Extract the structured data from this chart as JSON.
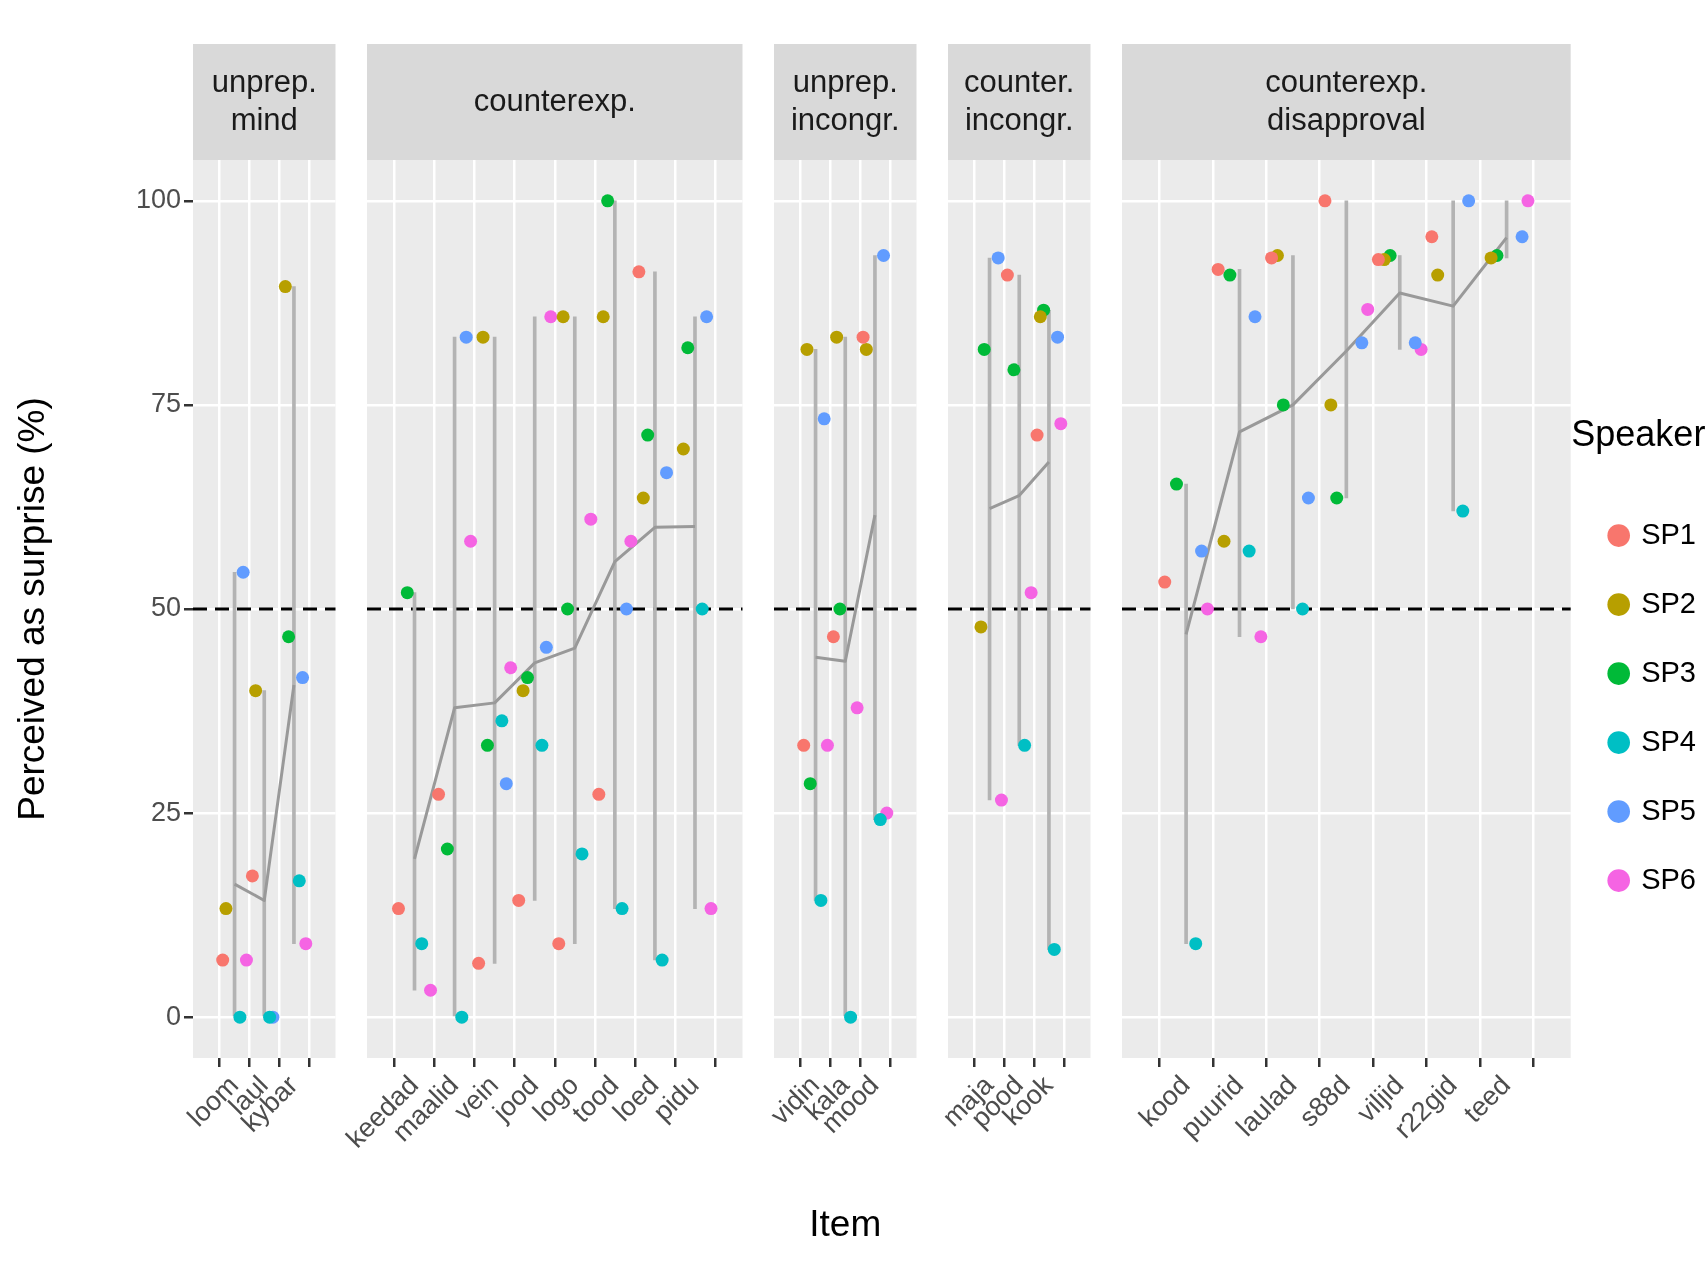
{
  "chart_data": [
    {
      "type": "scatter",
      "title": "unprep.\nmind",
      "ylabel": "Perceived as surprise (%)",
      "categories": [
        "loom",
        "laul",
        "kybar"
      ],
      "ylim": [
        -5,
        105
      ],
      "yticks": [
        0,
        25,
        50,
        75,
        100
      ],
      "grid": true,
      "ref_lines": [
        {
          "axis": "y",
          "value": 50,
          "color": "#000000",
          "line_style": "dashed"
        }
      ],
      "series": [
        {
          "color": "#f8766d",
          "values": [
            7,
            17.3,
            null
          ]
        },
        {
          "color": "#b79f00",
          "values": [
            13.3,
            40,
            89.5
          ]
        },
        {
          "color": "#00ba38",
          "values": [
            null,
            null,
            46.6
          ]
        },
        {
          "color": "#00bfc4",
          "values": [
            0,
            0,
            16.7
          ]
        },
        {
          "color": "#619cff",
          "values": [
            54.5,
            0,
            41.6
          ]
        },
        {
          "color": "#f564e3",
          "values": [
            7,
            null,
            9
          ]
        },
        {
          "type": "bar",
          "color": "#b3b3b3",
          "base": [
            0,
            0,
            9
          ],
          "values": [
            54.5,
            40,
            80.5
          ]
        },
        {
          "type": "line",
          "color": "#999999",
          "values": [
            16.3,
            14.3,
            40.7
          ]
        }
      ]
    },
    {
      "type": "scatter",
      "title": "counterexp.",
      "categories": [
        "keedad",
        "maalid",
        "vein",
        "jood",
        "logo",
        "tood",
        "loed",
        "pidu"
      ],
      "ylim": [
        -5,
        105
      ],
      "yticks": [
        0,
        25,
        50,
        75,
        100
      ],
      "grid": true,
      "tick_labels": "x",
      "ref_lines": [
        {
          "axis": "y",
          "value": 50,
          "color": "#000000",
          "line_style": "dashed"
        }
      ],
      "series": [
        {
          "color": "#f8766d",
          "values": [
            13.3,
            27.3,
            6.6,
            14.3,
            9,
            27.3,
            91.3,
            null
          ]
        },
        {
          "color": "#b79f00",
          "values": [
            null,
            null,
            83.3,
            40,
            85.8,
            85.8,
            63.6,
            69.6
          ]
        },
        {
          "color": "#00ba38",
          "values": [
            52,
            20.6,
            33.3,
            41.6,
            50,
            100,
            71.3,
            82
          ]
        },
        {
          "color": "#00bfc4",
          "values": [
            9,
            0,
            36.3,
            33.3,
            20,
            13.3,
            7,
            50
          ]
        },
        {
          "color": "#619cff",
          "values": [
            null,
            83.3,
            28.6,
            45.3,
            null,
            50,
            66.7,
            85.8
          ]
        },
        {
          "color": "#f564e3",
          "values": [
            3.3,
            58.3,
            42.8,
            85.8,
            61,
            58.3,
            null,
            13.3
          ]
        },
        {
          "type": "bar",
          "color": "#b3b3b3",
          "base": [
            3.3,
            0,
            6.6,
            14.3,
            9,
            13.3,
            7,
            13.3
          ],
          "values": [
            48.7,
            83.3,
            76.7,
            71.5,
            76.8,
            86.7,
            84.3,
            72.5
          ]
        },
        {
          "type": "line",
          "color": "#999999",
          "values": [
            19.4,
            37.9,
            38.5,
            43.4,
            45.2,
            55.8,
            60,
            60.1
          ]
        }
      ]
    },
    {
      "type": "scatter",
      "title": "unprep.\nincongr.",
      "xlabel": "Item",
      "categories": [
        "vidin",
        "kala",
        "mood"
      ],
      "ylim": [
        -5,
        105
      ],
      "yticks": [
        0,
        25,
        50,
        75,
        100
      ],
      "grid": true,
      "tick_labels": "x",
      "ref_lines": [
        {
          "axis": "y",
          "value": 50,
          "color": "#000000",
          "line_style": "dashed"
        }
      ],
      "series": [
        {
          "color": "#f8766d",
          "values": [
            33.3,
            46.6,
            83.3
          ]
        },
        {
          "color": "#b79f00",
          "values": [
            81.8,
            83.3,
            81.8
          ]
        },
        {
          "color": "#00ba38",
          "values": [
            28.6,
            50,
            null
          ]
        },
        {
          "color": "#00bfc4",
          "values": [
            14.3,
            0,
            24.2
          ]
        },
        {
          "color": "#619cff",
          "values": [
            73.3,
            null,
            93.3
          ]
        },
        {
          "color": "#f564e3",
          "values": [
            33.3,
            37.9,
            25
          ]
        },
        {
          "type": "bar",
          "color": "#b3b3b3",
          "base": [
            14.3,
            0,
            24.2
          ],
          "values": [
            67.5,
            83.3,
            69.1
          ]
        },
        {
          "type": "line",
          "color": "#999999",
          "values": [
            44.1,
            43.6,
            61.5
          ]
        }
      ]
    },
    {
      "type": "scatter",
      "title": "counter.\nincongr.",
      "categories": [
        "maja",
        "pood",
        "kook"
      ],
      "ylim": [
        -5,
        105
      ],
      "yticks": [
        0,
        25,
        50,
        75,
        100
      ],
      "grid": true,
      "tick_labels": "x",
      "ref_lines": [
        {
          "axis": "y",
          "value": 50,
          "color": "#000000",
          "line_style": "dashed"
        }
      ],
      "series": [
        {
          "color": "#f8766d",
          "values": [
            null,
            90.9,
            71.3
          ]
        },
        {
          "color": "#b79f00",
          "values": [
            47.8,
            null,
            85.8
          ]
        },
        {
          "color": "#00ba38",
          "values": [
            81.8,
            79.3,
            86.6
          ]
        },
        {
          "color": "#00bfc4",
          "values": [
            null,
            33.3,
            8.3
          ]
        },
        {
          "color": "#619cff",
          "values": [
            93,
            null,
            83.3
          ]
        },
        {
          "color": "#f564e3",
          "values": [
            26.6,
            52,
            72.7
          ]
        },
        {
          "type": "bar",
          "color": "#b3b3b3",
          "base": [
            26.6,
            33.3,
            8.3
          ],
          "values": [
            66.4,
            57.6,
            78.3
          ]
        },
        {
          "type": "line",
          "color": "#999999",
          "values": [
            62.3,
            63.9,
            68
          ]
        }
      ]
    },
    {
      "type": "scatter",
      "title": "counterexp.\ndisapproval",
      "categories": [
        "kood",
        "puurid",
        "laulad",
        "s88d",
        "viljid",
        "r22gid",
        "teed"
      ],
      "ylim": [
        -5,
        105
      ],
      "yticks": [
        0,
        25,
        50,
        75,
        100
      ],
      "grid": true,
      "tick_labels": "x",
      "legend": "right",
      "legend_title": "Speaker",
      "ref_lines": [
        {
          "axis": "y",
          "value": 50,
          "color": "#000000",
          "line_style": "dashed"
        }
      ],
      "series": [
        {
          "name": "SP1",
          "color": "#f8766d",
          "values": [
            53.3,
            91.6,
            93,
            100,
            92.8,
            95.6,
            null
          ]
        },
        {
          "name": "SP2",
          "color": "#b79f00",
          "values": [
            null,
            58.3,
            93.3,
            75,
            92.8,
            90.9,
            93
          ]
        },
        {
          "name": "SP3",
          "color": "#00ba38",
          "values": [
            65.3,
            90.9,
            75,
            63.6,
            93.3,
            null,
            93.3
          ]
        },
        {
          "name": "SP4",
          "color": "#00bfc4",
          "values": [
            9,
            57.1,
            50,
            null,
            null,
            62,
            null
          ]
        },
        {
          "name": "SP5",
          "color": "#619cff",
          "values": [
            57.1,
            85.8,
            63.6,
            82.6,
            82.6,
            100,
            95.6
          ]
        },
        {
          "name": "SP6",
          "color": "#f564e3",
          "values": [
            50,
            46.6,
            null,
            86.7,
            81.8,
            null,
            100
          ]
        },
        {
          "type": "bar",
          "color": "#b3b3b3",
          "base": [
            9,
            46.6,
            50,
            63.6,
            81.8,
            62,
            93
          ],
          "values": [
            56.3,
            45,
            43.3,
            36.4,
            11.5,
            38,
            7
          ]
        },
        {
          "type": "line",
          "color": "#999999",
          "values": [
            46.9,
            71.7,
            75,
            81.6,
            88.7,
            87.1,
            95.5
          ]
        }
      ]
    }
  ]
}
